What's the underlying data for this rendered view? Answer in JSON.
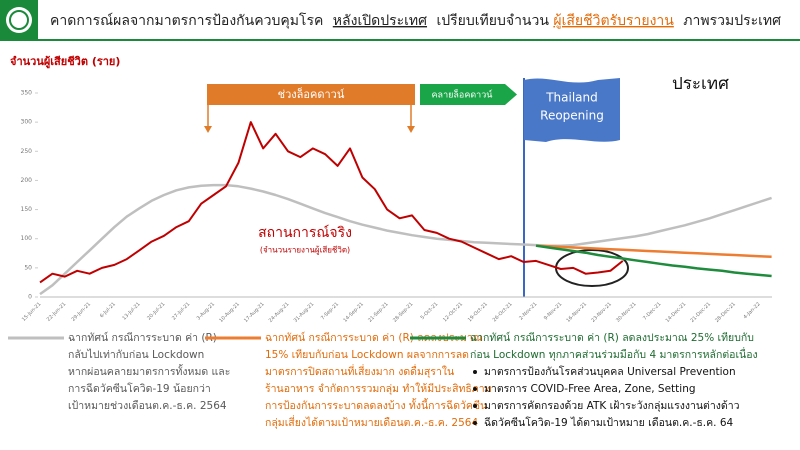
{
  "chart_data": {
    "type": "line",
    "title_parts": [
      "คาดการณ์ผลจากมาตรการป้องกันควบคุมโรค",
      "หลังเปิดประเทศ",
      "เปรียบเทียบจำนวน",
      "ผู้เสียชีวิตรับรายงาน",
      "ภาพรวมประเทศ"
    ],
    "y_label": "จำนวนผู้เสียชีวิต (ราย)",
    "region_label": "ประเทศ",
    "lockdown_label": "ช่วงล็อคดาวน์",
    "easing_label": "คลายล็อคดาวน์",
    "reopening_label": [
      "Thailand",
      "Reopening"
    ],
    "actual_note": "(จำนวนรายงานผู้เสียชีวิต)",
    "ylim": [
      0,
      350
    ],
    "yticks": [
      0,
      50,
      100,
      150,
      200,
      250,
      300,
      350
    ],
    "categories": [
      "15-Jun-21",
      null,
      "22-Jun-21",
      null,
      "29-Jun-21",
      null,
      "6-Jul-21",
      null,
      "13-Jul-21",
      null,
      "20-Jul-21",
      null,
      "27-Jul-21",
      null,
      "3-Aug-21",
      null,
      "10-Aug-21",
      null,
      "17-Aug-21",
      null,
      "24-Aug-21",
      null,
      "31-Aug-21",
      null,
      "7-Sep-21",
      null,
      "14-Sep-21",
      null,
      "21-Sep-21",
      null,
      "28-Sep-21",
      null,
      "5-Oct-21",
      null,
      "12-Oct-21",
      null,
      "19-Oct-21",
      null,
      "26-Oct-21",
      null,
      "2-Nov-21",
      null,
      "9-Nov-21",
      null,
      "16-Nov-21",
      null,
      "23-Nov-21",
      null,
      "30-Nov-21",
      null,
      "7-Dec-21",
      null,
      "14-Dec-21",
      null,
      "21-Dec-21",
      null,
      "28-Dec-21",
      null,
      "4-Jan-22",
      null
    ],
    "series": [
      {
        "name": "สถานการณ์จริง",
        "color": "#c00000",
        "values": [
          25,
          40,
          35,
          45,
          40,
          50,
          55,
          65,
          80,
          95,
          105,
          120,
          130,
          160,
          175,
          190,
          230,
          300,
          255,
          280,
          250,
          240,
          255,
          245,
          225,
          255,
          205,
          185,
          150,
          135,
          140,
          115,
          110,
          100,
          95,
          85,
          75,
          65,
          70,
          60,
          62,
          55,
          48,
          50,
          40,
          42,
          45,
          62,
          null,
          null,
          null,
          null,
          null,
          null,
          null,
          null,
          null,
          null,
          null,
          null
        ]
      },
      {
        "name": "ฉากทัศน์ กรณีการระบาด ค่า (R)",
        "color": "#bfbfbf",
        "text_color": "#595959",
        "description": [
          "กลับไปเท่ากับก่อน Lockdown",
          "หากผ่อนคลายมาตรการทั้งหมด และ",
          "การฉีดวัคซีนโควิด-19 น้อยกว่า",
          "เป้าหมายช่วงเดือนต.ค.-ธ.ค. 2564"
        ],
        "values": [
          5,
          20,
          40,
          60,
          80,
          100,
          120,
          138,
          152,
          165,
          175,
          183,
          188,
          191,
          192,
          192,
          190,
          186,
          181,
          175,
          168,
          160,
          152,
          144,
          137,
          130,
          124,
          119,
          114,
          110,
          106,
          103,
          100,
          98,
          96,
          94,
          93,
          92,
          91,
          90,
          89,
          88,
          88,
          89,
          92,
          95,
          98,
          101,
          104,
          108,
          113,
          118,
          123,
          129,
          135,
          142,
          149,
          156,
          163,
          170
        ]
      },
      {
        "name": "ฉากทัศน์ กรณีการระบาด ค่า (R) ลดลงประมาณ",
        "color": "#ed7d31",
        "text_color": "#e26b0a",
        "description": [
          "15% เทียบกับก่อน Lockdown ผลจากการลด",
          "มาตรการปิดสถานที่เสี่ยงมาก งดดื่มสุราใน",
          "ร้านอาหาร จำกัดการรวมกลุ่ม ทำให้มีประสิทธิภาพ",
          "การป้องกันการระบาดลดลงบ้าง ทั้งนี้การฉีดวัคซีน",
          "กลุ่มเสี่ยงได้ตามเป้าหมายเดือนต.ค.-ธ.ค. 2564"
        ],
        "values": [
          null,
          null,
          null,
          null,
          null,
          null,
          null,
          null,
          null,
          null,
          null,
          null,
          null,
          null,
          null,
          null,
          null,
          null,
          null,
          null,
          null,
          null,
          null,
          null,
          null,
          null,
          null,
          null,
          null,
          null,
          null,
          null,
          null,
          null,
          null,
          null,
          null,
          null,
          null,
          null,
          88,
          87,
          86,
          85,
          84,
          83,
          82,
          81,
          80,
          79,
          78,
          77,
          76,
          75,
          74,
          73,
          72,
          71,
          70,
          69
        ]
      },
      {
        "name": "ฉากทัศน์ กรณีการระบาด ค่า (R) ลดลงประมาณ 25% เทียบกับ",
        "color": "#1e8c3c",
        "text_color": "#1e6b30",
        "description": [
          "ก่อน Lockdown ทุกภาคส่วนร่วมมือกับ 4 มาตรการหลักต่อเนื่อง"
        ],
        "bullets": [
          "มาตรการป้องกันโรคส่วนบุคคล Universal Prevention",
          "มาตรการ COVID-Free Area, Zone, Setting",
          "มาตรการคัดกรองด้วย ATK เฝ้าระวังกลุ่มแรงงานต่างด้าว",
          "ฉีดวัคซีนโควิด-19 ได้ตามเป้าหมาย เดือนต.ค.-ธ.ค. 64"
        ],
        "values": [
          null,
          null,
          null,
          null,
          null,
          null,
          null,
          null,
          null,
          null,
          null,
          null,
          null,
          null,
          null,
          null,
          null,
          null,
          null,
          null,
          null,
          null,
          null,
          null,
          null,
          null,
          null,
          null,
          null,
          null,
          null,
          null,
          null,
          null,
          null,
          null,
          null,
          null,
          null,
          null,
          88,
          85,
          82,
          79,
          76,
          72,
          69,
          66,
          63,
          60,
          57,
          54,
          52,
          49,
          47,
          45,
          42,
          40,
          38,
          36
        ]
      }
    ]
  }
}
